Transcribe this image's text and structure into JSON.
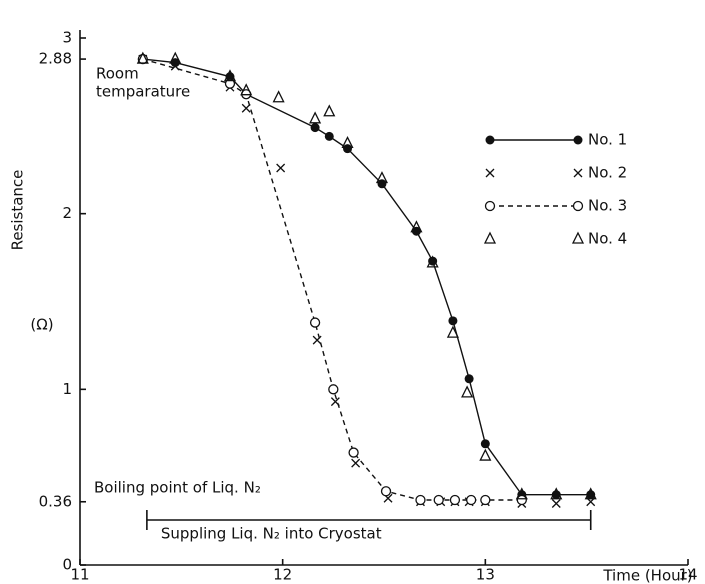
{
  "chart_data": {
    "type": "scatter",
    "x_label": "Time (Hour)",
    "y_label": "Resistance",
    "y_unit": "(Ω)",
    "xlim": [
      11,
      14
    ],
    "xticks": [
      11,
      12,
      13,
      14
    ],
    "ylim": [
      0,
      3
    ],
    "yticks": [
      0,
      0.36,
      1,
      2,
      2.88,
      3
    ],
    "grid": false,
    "legend": "right",
    "annotations": [
      {
        "lines": [
          "Room",
          "temparature"
        ]
      },
      {
        "text": "Boiling point of Liq. N₂"
      },
      {
        "text": "Suppling Liq. N₂ into Cryostat",
        "x": [
          11.33,
          13.52
        ]
      }
    ],
    "series": [
      {
        "name": "No. 1",
        "color": "#111111",
        "marker": "filled-circle",
        "line": "solid",
        "x": [
          11.31,
          11.47,
          11.74,
          11.82,
          12.16,
          12.23,
          12.32,
          12.49,
          12.66,
          12.74,
          12.84,
          12.92,
          13.0,
          13.18,
          13.35,
          13.52
        ],
        "values": [
          2.88,
          2.86,
          2.78,
          2.68,
          2.49,
          2.44,
          2.37,
          2.17,
          1.9,
          1.73,
          1.39,
          1.06,
          0.69,
          0.4,
          0.4,
          0.4
        ]
      },
      {
        "name": "No. 2",
        "color": "#111111",
        "marker": "cross",
        "line": null,
        "x": [
          11.31,
          11.47,
          11.74,
          11.82,
          11.99,
          12.17,
          12.26,
          12.36,
          12.52,
          12.68,
          12.78,
          12.85,
          12.92,
          13.0,
          13.18,
          13.35,
          13.52
        ],
        "values": [
          2.88,
          2.84,
          2.72,
          2.6,
          2.26,
          1.28,
          0.93,
          0.58,
          0.38,
          0.36,
          0.36,
          0.36,
          0.36,
          0.36,
          0.35,
          0.35,
          0.36
        ]
      },
      {
        "name": "No. 3",
        "color": "#111111",
        "marker": "open-circle",
        "line": "dashed",
        "x": [
          11.31,
          11.74,
          11.82,
          12.16,
          12.25,
          12.35,
          12.51,
          12.68,
          12.77,
          12.85,
          12.93,
          13.0,
          13.18
        ],
        "values": [
          2.88,
          2.74,
          2.68,
          1.38,
          1.0,
          0.64,
          0.42,
          0.37,
          0.37,
          0.37,
          0.37,
          0.37,
          0.37
        ]
      },
      {
        "name": "No. 4",
        "color": "#111111",
        "marker": "triangle",
        "line": null,
        "x": [
          11.31,
          11.47,
          11.74,
          11.82,
          11.98,
          12.16,
          12.23,
          12.32,
          12.49,
          12.66,
          12.74,
          12.84,
          12.91,
          13.0,
          13.18,
          13.35,
          13.52
        ],
        "values": [
          2.88,
          2.88,
          2.78,
          2.7,
          2.66,
          2.54,
          2.58,
          2.4,
          2.2,
          1.92,
          1.72,
          1.32,
          0.98,
          0.62,
          0.4,
          0.4,
          0.4
        ]
      }
    ]
  }
}
